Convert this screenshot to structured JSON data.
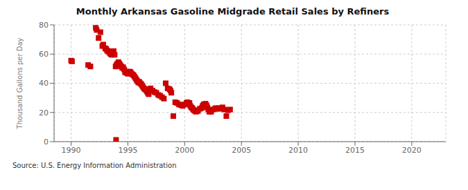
{
  "chart_data": {
    "type": "scatter",
    "title": "Monthly Arkansas Gasoline Midgrade Retail Sales by Refiners",
    "ylabel": "Thousand Gallons per Day",
    "annotations": [
      "Source: U.S. Energy Information Administration"
    ],
    "color": "#cc0000",
    "marker": "square",
    "grid": true,
    "xlim": [
      1988.5,
      2023
    ],
    "ylim": [
      0,
      80
    ],
    "xticks": [
      1990,
      1995,
      2000,
      2005,
      2010,
      2015,
      2020
    ],
    "yticks": [
      0,
      20,
      40,
      60,
      80
    ],
    "x": [
      1990.0,
      1990.08,
      1991.5,
      1991.7,
      1992.17,
      1992.25,
      1992.42,
      1992.58,
      1992.75,
      1992.83,
      1993.0,
      1993.08,
      1993.17,
      1993.25,
      1993.33,
      1993.42,
      1993.5,
      1993.58,
      1993.67,
      1993.75,
      1993.83,
      1993.92,
      1993.96,
      1994.0,
      1994.08,
      1994.17,
      1994.25,
      1994.33,
      1994.42,
      1994.5,
      1994.58,
      1994.67,
      1994.75,
      1994.83,
      1994.92,
      1995.0,
      1995.08,
      1995.17,
      1995.25,
      1995.33,
      1995.42,
      1995.5,
      1995.58,
      1995.67,
      1995.75,
      1995.83,
      1995.92,
      1996.0,
      1996.08,
      1996.17,
      1996.25,
      1996.33,
      1996.42,
      1996.5,
      1996.58,
      1996.67,
      1996.75,
      1996.83,
      1997.0,
      1997.17,
      1997.33,
      1997.5,
      1997.67,
      1997.83,
      1998.0,
      1998.17,
      1998.33,
      1998.5,
      1998.67,
      1998.75,
      1998.83,
      1999.0,
      1999.17,
      1999.33,
      1999.5,
      1999.67,
      1999.83,
      2000.0,
      2000.17,
      2000.25,
      2000.33,
      2000.42,
      2000.5,
      2000.58,
      2000.67,
      2000.75,
      2000.83,
      2000.92,
      2001.0,
      2001.17,
      2001.33,
      2001.5,
      2001.58,
      2001.67,
      2001.75,
      2001.83,
      2001.92,
      2002.0,
      2002.08,
      2002.17,
      2002.25,
      2002.33,
      2002.5,
      2002.67,
      2002.75,
      2002.83,
      2003.0,
      2003.17,
      2003.33,
      2003.5,
      2003.67,
      2003.83,
      2004.0
    ],
    "values": [
      55.5,
      55.0,
      52.5,
      51.5,
      78.0,
      76.5,
      71.0,
      75.0,
      65.5,
      66.5,
      64.0,
      63.5,
      62.5,
      62.0,
      61.5,
      60.5,
      60.0,
      59.5,
      60.0,
      62.0,
      59.5,
      51.5,
      1.2,
      52.5,
      53.5,
      54.5,
      53.5,
      52.5,
      51.5,
      50.5,
      51.0,
      49.5,
      47.5,
      48.0,
      47.0,
      46.5,
      47.5,
      48.0,
      47.5,
      46.5,
      46.0,
      45.5,
      44.5,
      43.5,
      42.5,
      41.5,
      40.5,
      41.0,
      40.0,
      39.5,
      38.5,
      37.5,
      36.5,
      36.0,
      35.5,
      34.5,
      33.5,
      32.5,
      36.5,
      35.0,
      34.0,
      33.5,
      32.0,
      31.5,
      30.5,
      29.5,
      40.0,
      36.5,
      36.0,
      35.0,
      33.5,
      17.5,
      27.0,
      26.5,
      25.5,
      25.0,
      24.5,
      25.5,
      26.5,
      27.0,
      25.5,
      26.5,
      24.5,
      23.5,
      23.0,
      22.0,
      21.5,
      21.0,
      20.5,
      21.0,
      22.5,
      23.0,
      24.5,
      25.5,
      25.0,
      26.0,
      25.0,
      23.5,
      22.0,
      20.5,
      21.5,
      20.5,
      22.0,
      22.5,
      23.0,
      22.5,
      23.0,
      22.5,
      23.5,
      22.0,
      17.5,
      21.5,
      22.0
    ]
  }
}
